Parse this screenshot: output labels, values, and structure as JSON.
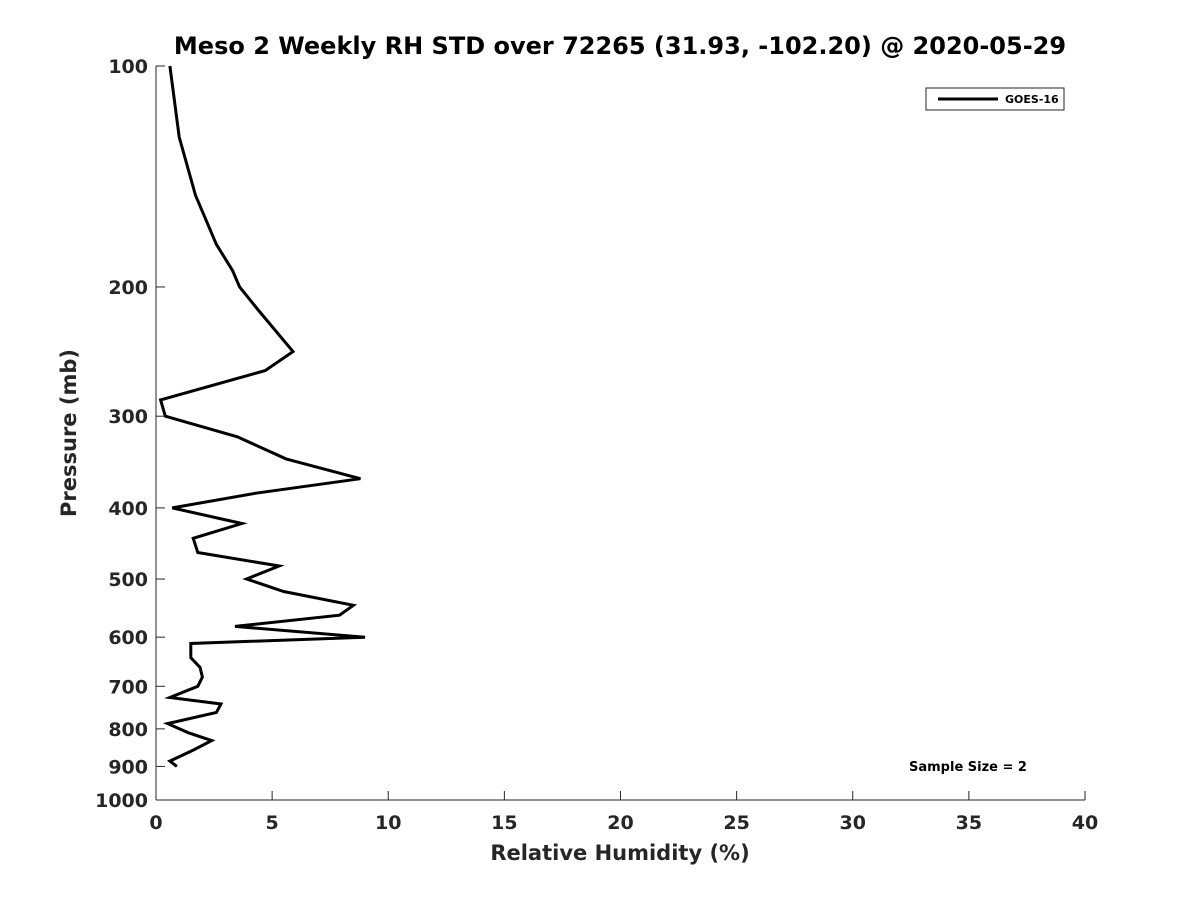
{
  "chart_data": {
    "type": "line",
    "title": "Meso 2 Weekly RH STD over 72265 (31.93, -102.20) @ 2020-05-29",
    "xlabel": "Relative Humidity (%)",
    "ylabel": "Pressure (mb)",
    "xlim": [
      0,
      40
    ],
    "ylim": [
      100,
      1000
    ],
    "y_scale": "log",
    "y_reversed": true,
    "x_ticks": [
      "0",
      "5",
      "10",
      "15",
      "20",
      "25",
      "30",
      "35",
      "40"
    ],
    "y_ticks": [
      "100",
      "200",
      "300",
      "400",
      "500",
      "600",
      "700",
      "800",
      "900",
      "1000"
    ],
    "grid": false,
    "legend_position": "top-right",
    "annotation": "Sample Size = 2",
    "series": [
      {
        "name": "GOES-16",
        "color": "#000000",
        "points": [
          {
            "x": 0.6,
            "p": 100
          },
          {
            "x": 1.0,
            "p": 125
          },
          {
            "x": 1.7,
            "p": 150
          },
          {
            "x": 2.6,
            "p": 175
          },
          {
            "x": 3.3,
            "p": 190
          },
          {
            "x": 3.6,
            "p": 200
          },
          {
            "x": 4.4,
            "p": 215
          },
          {
            "x": 5.9,
            "p": 245
          },
          {
            "x": 4.7,
            "p": 260
          },
          {
            "x": 0.2,
            "p": 285
          },
          {
            "x": 0.4,
            "p": 300
          },
          {
            "x": 3.5,
            "p": 320
          },
          {
            "x": 5.6,
            "p": 343
          },
          {
            "x": 8.8,
            "p": 365
          },
          {
            "x": 4.3,
            "p": 382
          },
          {
            "x": 0.7,
            "p": 400
          },
          {
            "x": 3.7,
            "p": 420
          },
          {
            "x": 1.6,
            "p": 440
          },
          {
            "x": 1.8,
            "p": 460
          },
          {
            "x": 5.3,
            "p": 480
          },
          {
            "x": 3.9,
            "p": 500
          },
          {
            "x": 5.5,
            "p": 520
          },
          {
            "x": 8.5,
            "p": 543
          },
          {
            "x": 7.9,
            "p": 560
          },
          {
            "x": 3.4,
            "p": 580
          },
          {
            "x": 9.0,
            "p": 600
          },
          {
            "x": 1.5,
            "p": 612
          },
          {
            "x": 1.5,
            "p": 640
          },
          {
            "x": 1.9,
            "p": 660
          },
          {
            "x": 2.0,
            "p": 680
          },
          {
            "x": 1.8,
            "p": 700
          },
          {
            "x": 0.6,
            "p": 725
          },
          {
            "x": 2.8,
            "p": 740
          },
          {
            "x": 2.6,
            "p": 760
          },
          {
            "x": 0.5,
            "p": 787
          },
          {
            "x": 1.4,
            "p": 810
          },
          {
            "x": 2.4,
            "p": 830
          },
          {
            "x": 1.6,
            "p": 855
          },
          {
            "x": 0.6,
            "p": 885
          },
          {
            "x": 0.9,
            "p": 900
          }
        ]
      }
    ]
  }
}
